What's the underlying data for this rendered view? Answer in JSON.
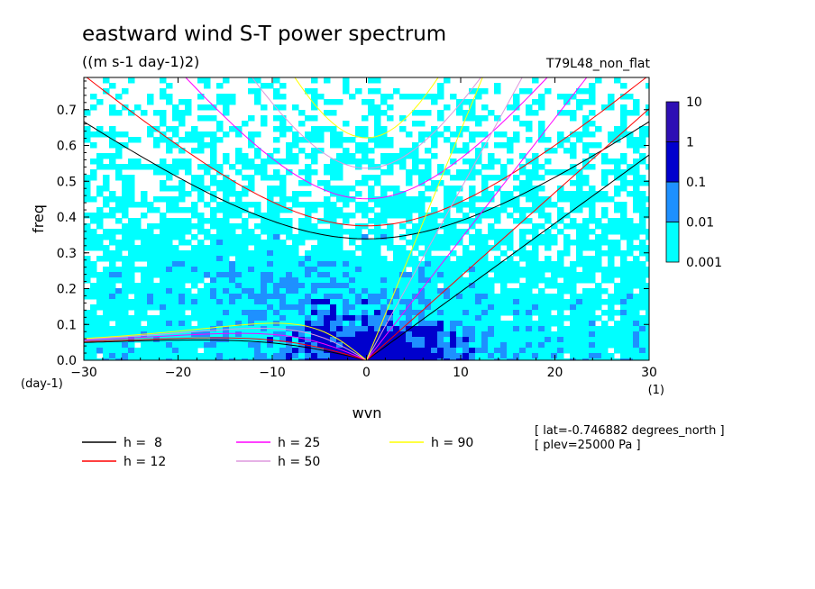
{
  "chart_data": {
    "type": "heatmap",
    "title": "eastward wind S-T power spectrum",
    "subtitle": "((m s-1 day-1)2)",
    "run_label": "T79L48_non_flat",
    "xlabel": "wvn",
    "ylabel": "freq",
    "x_unit": "(1)",
    "y_unit": "(day-1)",
    "xlim": [
      -30,
      30
    ],
    "ylim": [
      0,
      0.79
    ],
    "x_ticks": [
      -30,
      -20,
      -10,
      0,
      10,
      20,
      30
    ],
    "y_ticks": [
      0.0,
      0.1,
      0.2,
      0.3,
      0.4,
      0.5,
      0.6,
      0.7
    ],
    "colorbar": {
      "levels": [
        "0.001",
        "0.01",
        "0.1",
        "1",
        "10"
      ],
      "colors": [
        "#00ffff",
        "#1e90ff",
        "#0000cd",
        "#2e0fb4"
      ],
      "scale": "log"
    },
    "field_colors": {
      "background": "#ffffff",
      "low": "#00ffff",
      "mid": "#1e90ff",
      "high": "#0000cd"
    },
    "dispersion_curves": [
      {
        "name": "h =  8",
        "h": 8,
        "color": "#000000"
      },
      {
        "name": "h = 12",
        "h": 12,
        "color": "#ff0000"
      },
      {
        "name": "h = 25",
        "h": 25,
        "color": "#ff00ff"
      },
      {
        "name": "h = 50",
        "h": 50,
        "color": "#dd99dd"
      },
      {
        "name": "h = 90",
        "h": 90,
        "color": "#ffff00"
      }
    ],
    "annotations": [
      "[ lat=-0.746882 degrees_north ]",
      "[ plev=25000 Pa ]"
    ]
  }
}
